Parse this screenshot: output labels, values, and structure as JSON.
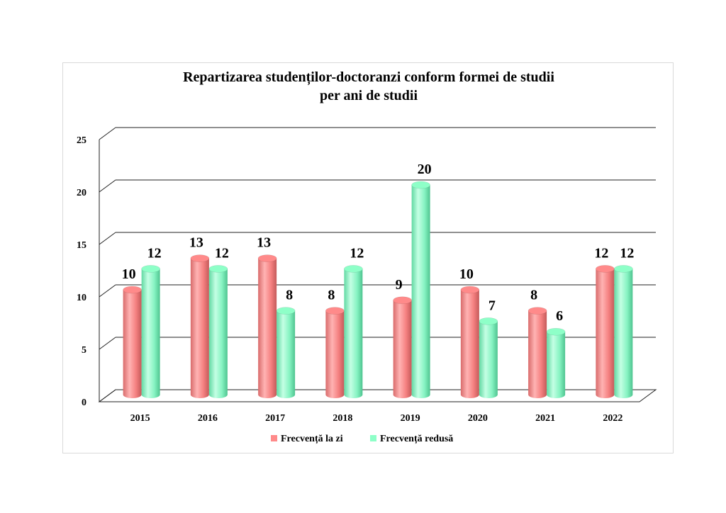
{
  "chart_data": {
    "type": "bar",
    "title": "Repartizarea studenților-doctoranzi conform formei de studii",
    "subtitle": "per ani de studii",
    "categories": [
      "2015",
      "2016",
      "2017",
      "2018",
      "2019",
      "2020",
      "2021",
      "2022"
    ],
    "series": [
      {
        "name": "Frecvență la zi",
        "color": "#ff8a8a",
        "values": [
          10,
          13,
          13,
          8,
          9,
          10,
          8,
          12
        ]
      },
      {
        "name": "Frecvență redusă",
        "color": "#8effc8",
        "values": [
          12,
          12,
          8,
          12,
          20,
          7,
          6,
          12
        ]
      }
    ],
    "ylim": [
      0,
      25
    ],
    "yticks": [
      "0",
      "5",
      "10",
      "15",
      "20",
      "25"
    ],
    "grid": true,
    "legend_position": "bottom",
    "style": "3d-cylinder"
  }
}
